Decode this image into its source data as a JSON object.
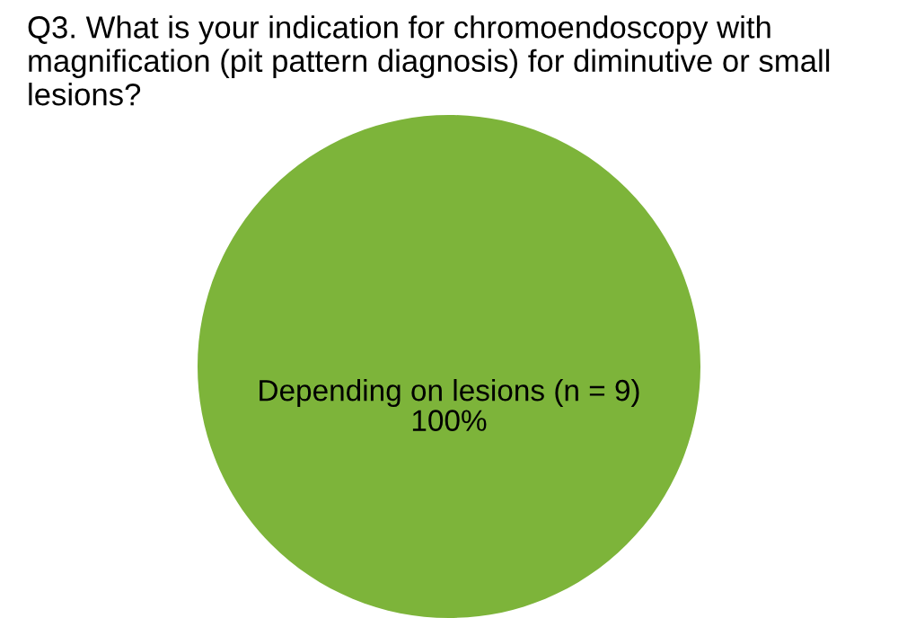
{
  "chart_data": {
    "type": "pie",
    "title": "Q3. What is your indication for chromoendoscopy with magnification (pit pattern diagnosis) for diminutive or small lesions?",
    "categories": [
      "Depending on lesions (n = 9)"
    ],
    "values": [
      100
    ],
    "colors": [
      "#7db43a"
    ],
    "value_labels": [
      "100%"
    ]
  }
}
